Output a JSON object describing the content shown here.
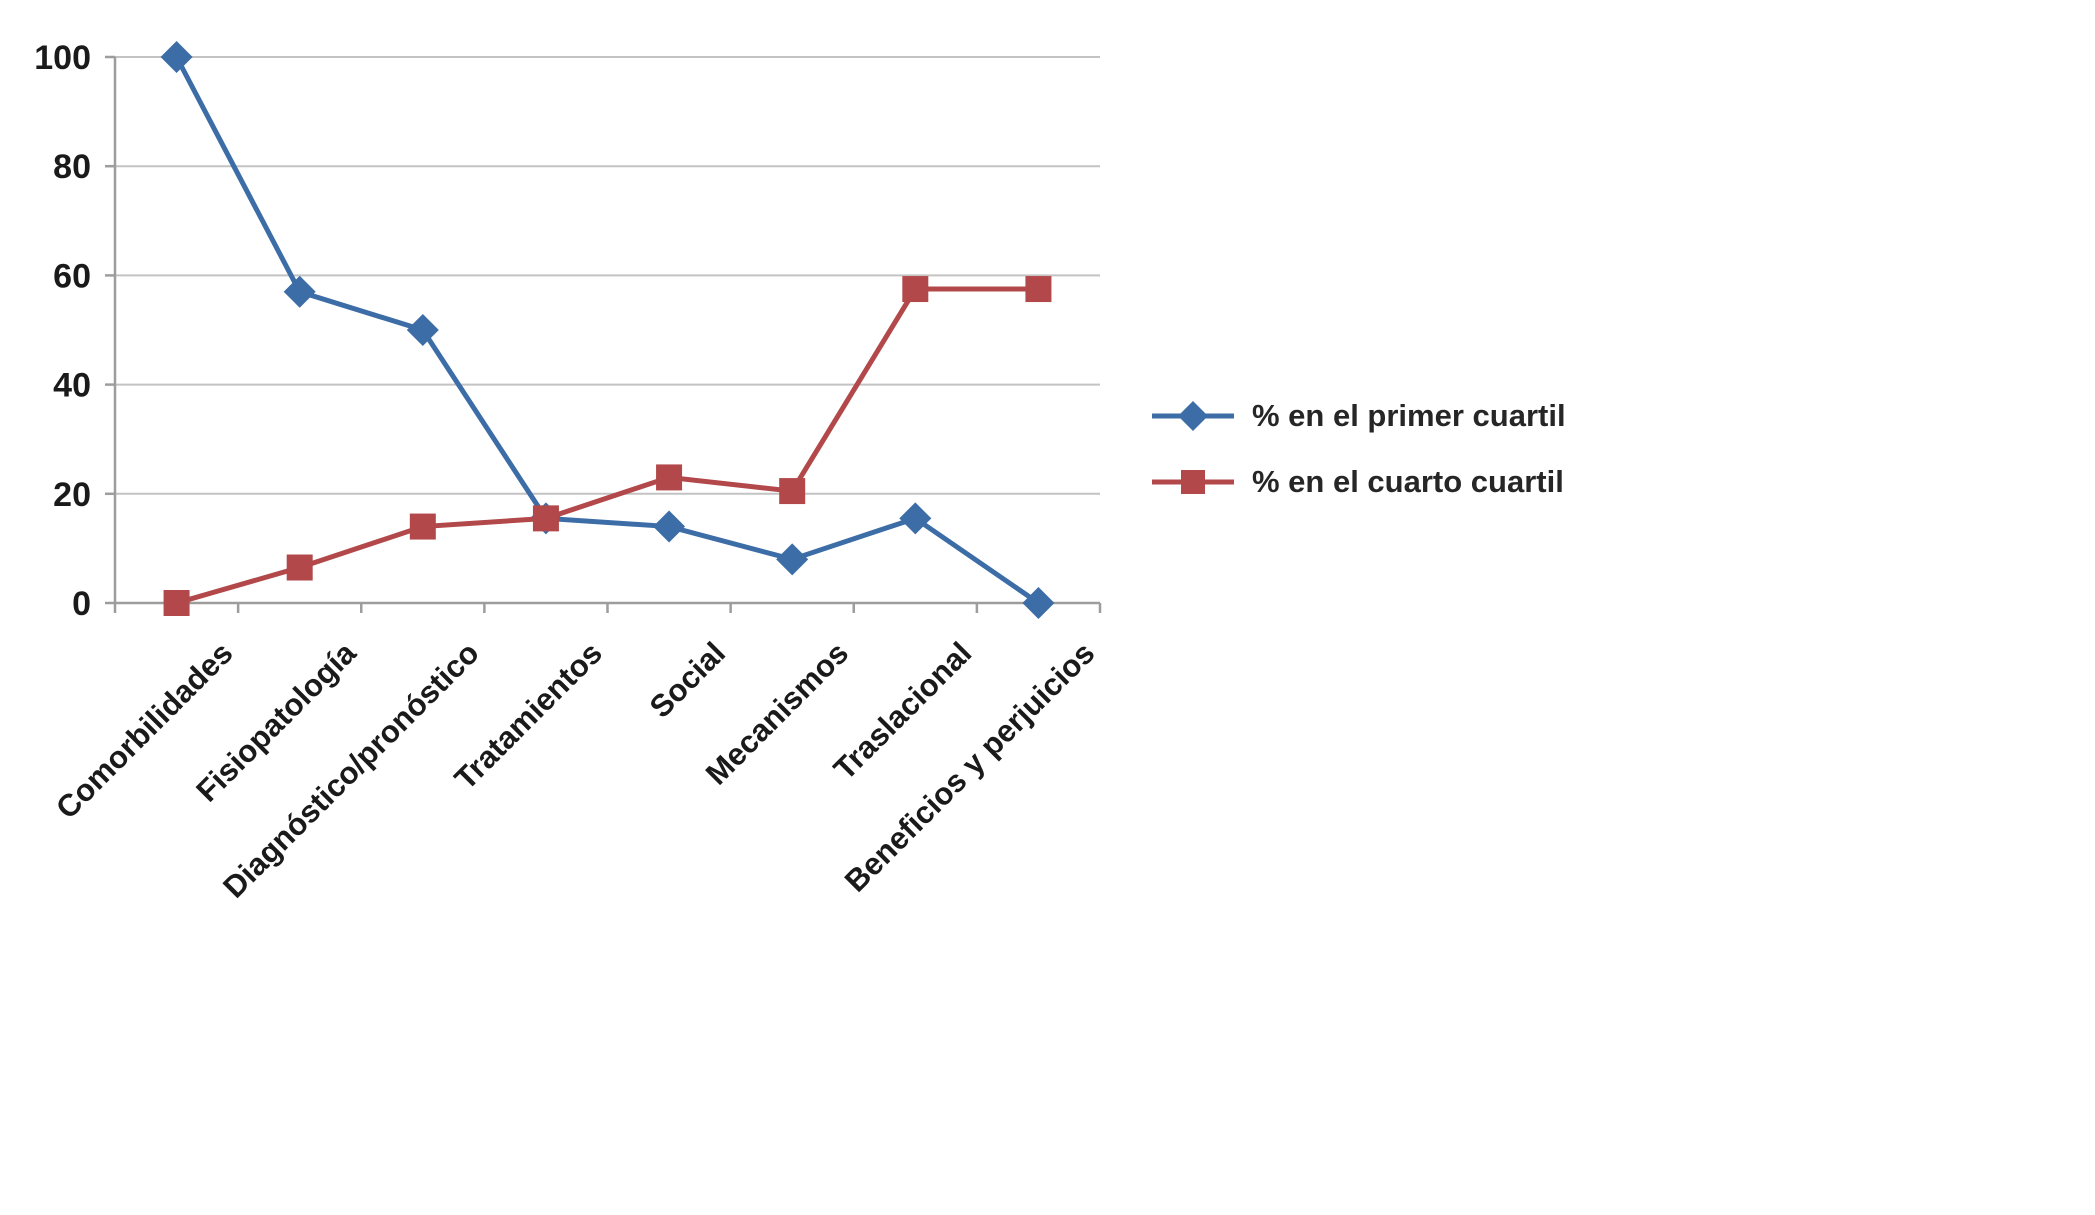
{
  "chart_data": {
    "type": "line",
    "title": "",
    "xlabel": "",
    "ylabel": "",
    "categories": [
      "Comorbilidades",
      "Fisiopatología",
      "Diagnóstico/pronóstico",
      "Tratamientos",
      "Social",
      "Mecanismos",
      "Traslacional",
      "Beneficios y perjuicios"
    ],
    "series": [
      {
        "name": "% en el primer cuartil",
        "marker": "diamond",
        "color": "#3C6DA6",
        "values": [
          100,
          57,
          50,
          15.5,
          14,
          8,
          15.5,
          0
        ]
      },
      {
        "name": "% en el cuarto cuartil",
        "marker": "square",
        "color": "#B2484A",
        "values": [
          0,
          6.5,
          14,
          15.5,
          23,
          20.5,
          57.5,
          57.5
        ]
      }
    ],
    "ylim": [
      0,
      100
    ],
    "yticks": [
      0,
      20,
      40,
      60,
      80,
      100
    ],
    "grid": true,
    "legend_position": "right"
  }
}
